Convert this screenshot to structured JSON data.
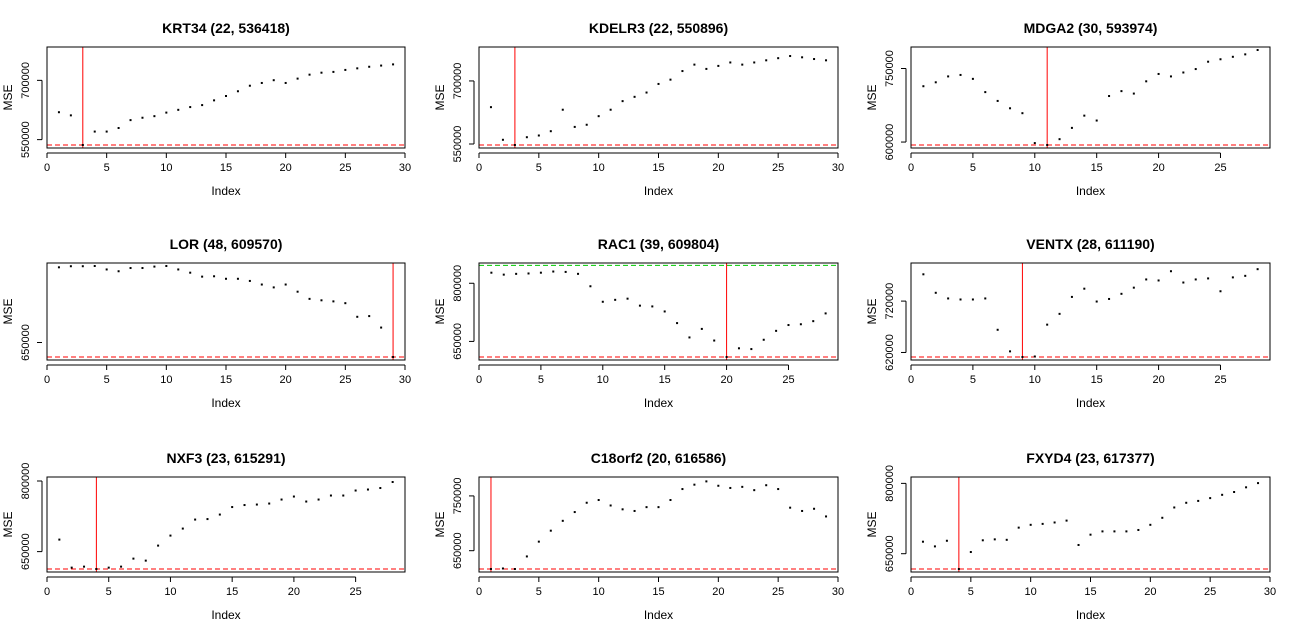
{
  "chart_data": [
    {
      "type": "scatter",
      "title": "KRT34 (22, 536418)",
      "xlabel": "Index",
      "ylabel": "MSE",
      "xlim": [
        0,
        30
      ],
      "ylim": [
        536418,
        792000
      ],
      "xticks": [
        0,
        5,
        10,
        15,
        20,
        25,
        30
      ],
      "yticks": [
        550000,
        700000
      ],
      "yticklabels": [
        "550000",
        "700000"
      ],
      "x": [
        1,
        2,
        3,
        4,
        5,
        6,
        7,
        8,
        9,
        10,
        11,
        12,
        13,
        14,
        15,
        16,
        17,
        18,
        19,
        20,
        21,
        22,
        23,
        24,
        25,
        26,
        27,
        28,
        29
      ],
      "y": [
        627000,
        619000,
        536418,
        578000,
        578000,
        587000,
        607000,
        613000,
        617000,
        626000,
        633000,
        640000,
        645000,
        657000,
        668000,
        680000,
        694000,
        701000,
        708000,
        701000,
        712000,
        722000,
        727000,
        729000,
        734000,
        738000,
        742000,
        745000,
        748000
      ],
      "reference_lines": [
        {
          "orientation": "vertical",
          "value": 3,
          "color": "#ff0000",
          "style": "solid"
        },
        {
          "orientation": "horizontal",
          "value": 536418,
          "color": "#ff0000",
          "style": "dashed"
        }
      ]
    },
    {
      "type": "scatter",
      "title": "KDELR3 (22, 550896)",
      "xlabel": "Index",
      "ylabel": "MSE",
      "xlim": [
        0,
        30
      ],
      "ylim": [
        550896,
        786000
      ],
      "xticks": [
        0,
        5,
        10,
        15,
        20,
        25,
        30
      ],
      "yticks": [
        550000,
        700000
      ],
      "yticklabels": [
        "550000",
        "700000"
      ],
      "x": [
        1,
        2,
        3,
        4,
        5,
        6,
        7,
        8,
        9,
        10,
        11,
        12,
        13,
        14,
        15,
        16,
        17,
        18,
        19,
        20,
        21,
        22,
        23,
        24,
        25,
        26,
        27,
        28,
        29
      ],
      "y": [
        646000,
        570000,
        550896,
        576000,
        580000,
        590000,
        640000,
        600000,
        605000,
        625000,
        640000,
        660000,
        670000,
        680000,
        700000,
        710000,
        730000,
        745000,
        735000,
        742000,
        750000,
        745000,
        750000,
        755000,
        760000,
        765000,
        762000,
        758000,
        755000
      ],
      "reference_lines": [
        {
          "orientation": "vertical",
          "value": 3,
          "color": "#ff0000",
          "style": "solid"
        },
        {
          "orientation": "horizontal",
          "value": 550896,
          "color": "#ff0000",
          "style": "dashed"
        }
      ]
    },
    {
      "type": "scatter",
      "title": "MDGA2 (30, 593974)",
      "xlabel": "Index",
      "ylabel": "MSE",
      "xlim": [
        0,
        29
      ],
      "ylim": [
        593974,
        800000
      ],
      "xticks": [
        0,
        5,
        10,
        15,
        20,
        25
      ],
      "yticks": [
        600000,
        750000
      ],
      "yticklabels": [
        "600000",
        "750000"
      ],
      "x": [
        1,
        2,
        3,
        4,
        5,
        6,
        7,
        8,
        9,
        10,
        11,
        12,
        13,
        14,
        15,
        16,
        17,
        18,
        19,
        20,
        21,
        22,
        23,
        24,
        25,
        26,
        27,
        28
      ],
      "y": [
        720000,
        728000,
        740000,
        743000,
        735000,
        708000,
        690000,
        675000,
        665000,
        604000,
        593974,
        612000,
        635000,
        660000,
        650000,
        700000,
        710000,
        705000,
        730000,
        745000,
        740000,
        748000,
        755000,
        770000,
        775000,
        780000,
        785000,
        795000
      ],
      "reference_lines": [
        {
          "orientation": "vertical",
          "value": 11,
          "color": "#ff0000",
          "style": "solid"
        },
        {
          "orientation": "horizontal",
          "value": 593974,
          "color": "#ff0000",
          "style": "dashed"
        }
      ]
    },
    {
      "type": "scatter",
      "title": "LOR (48, 609570)",
      "xlabel": "Index",
      "ylabel": "MSE",
      "xlim": [
        0,
        30
      ],
      "ylim": [
        609570,
        880000
      ],
      "xticks": [
        0,
        5,
        10,
        15,
        20,
        25,
        30
      ],
      "yticks": [
        650000
      ],
      "yticklabels": [
        "650000"
      ],
      "x": [
        1,
        2,
        3,
        4,
        5,
        6,
        7,
        8,
        9,
        10,
        11,
        12,
        13,
        14,
        15,
        16,
        17,
        18,
        19,
        20,
        21,
        22,
        23,
        24,
        25,
        26,
        27,
        28,
        29
      ],
      "y": [
        868000,
        871000,
        871000,
        872000,
        862000,
        857000,
        866000,
        866000,
        870000,
        872000,
        862000,
        853000,
        842000,
        843000,
        836000,
        836000,
        830000,
        820000,
        812000,
        820000,
        800000,
        780000,
        776000,
        773000,
        768000,
        730000,
        732000,
        700000,
        609570
      ],
      "reference_lines": [
        {
          "orientation": "vertical",
          "value": 29,
          "color": "#ff0000",
          "style": "solid"
        },
        {
          "orientation": "horizontal",
          "value": 609570,
          "color": "#ff0000",
          "style": "dashed"
        }
      ]
    },
    {
      "type": "scatter",
      "title": "RAC1 (39, 609804)",
      "xlabel": "Index",
      "ylabel": "MSE",
      "xlim": [
        0,
        29
      ],
      "ylim": [
        609804,
        860000
      ],
      "xticks": [
        0,
        5,
        10,
        15,
        20,
        25
      ],
      "yticks": [
        650000,
        800000
      ],
      "yticklabels": [
        "650000",
        "800000"
      ],
      "x": [
        1,
        2,
        3,
        4,
        5,
        6,
        7,
        8,
        9,
        10,
        11,
        12,
        13,
        14,
        15,
        16,
        17,
        18,
        19,
        20,
        21,
        22,
        23,
        24,
        25,
        26,
        27,
        28
      ],
      "y": [
        835000,
        830000,
        832000,
        833000,
        835000,
        838000,
        837000,
        832000,
        800000,
        760000,
        765000,
        768000,
        750000,
        748000,
        735000,
        705000,
        668000,
        690000,
        660000,
        609804,
        640000,
        638000,
        662000,
        685000,
        700000,
        702000,
        710000,
        730000
      ],
      "reference_lines": [
        {
          "orientation": "vertical",
          "value": 20,
          "color": "#ff0000",
          "style": "solid"
        },
        {
          "orientation": "horizontal",
          "value": 609804,
          "color": "#ff0000",
          "style": "dashed"
        },
        {
          "orientation": "horizontal",
          "value": 846000,
          "color": "#00cc00",
          "style": "dashed"
        }
      ]
    },
    {
      "type": "scatter",
      "title": "VENTX (28, 611190)",
      "xlabel": "Index",
      "ylabel": "MSE",
      "xlim": [
        0,
        29
      ],
      "ylim": [
        611190,
        800000
      ],
      "xticks": [
        0,
        5,
        10,
        15,
        20,
        25
      ],
      "yticks": [
        620000,
        720000
      ],
      "yticklabels": [
        "620000",
        "720000"
      ],
      "x": [
        1,
        2,
        3,
        4,
        5,
        6,
        7,
        8,
        9,
        10,
        11,
        12,
        13,
        14,
        15,
        16,
        17,
        18,
        19,
        20,
        21,
        22,
        23,
        24,
        25,
        26,
        27,
        28
      ],
      "y": [
        778000,
        742000,
        731000,
        729000,
        729000,
        731000,
        670000,
        628000,
        611190,
        618000,
        680000,
        701000,
        734000,
        750000,
        725000,
        730000,
        740000,
        752000,
        768000,
        766000,
        784000,
        762000,
        768000,
        770000,
        745000,
        772000,
        775000,
        788000
      ],
      "reference_lines": [
        {
          "orientation": "vertical",
          "value": 9,
          "color": "#ff0000",
          "style": "solid"
        },
        {
          "orientation": "horizontal",
          "value": 611190,
          "color": "#ff0000",
          "style": "dashed"
        }
      ]
    },
    {
      "type": "scatter",
      "title": "NXF3 (23, 615291)",
      "xlabel": "Index",
      "ylabel": "MSE",
      "xlim": [
        0,
        29
      ],
      "ylim": [
        615291,
        805000
      ],
      "xticks": [
        0,
        5,
        10,
        15,
        20,
        25
      ],
      "yticks": [
        650000,
        800000
      ],
      "yticklabels": [
        "650000",
        "800000"
      ],
      "x": [
        1,
        2,
        3,
        4,
        5,
        6,
        7,
        8,
        9,
        10,
        11,
        12,
        13,
        14,
        15,
        16,
        17,
        18,
        19,
        20,
        21,
        22,
        23,
        24,
        25,
        26,
        27,
        28
      ],
      "y": [
        680000,
        624000,
        626000,
        615291,
        624000,
        626000,
        642000,
        638000,
        668000,
        688000,
        702000,
        720000,
        721000,
        730000,
        745000,
        749000,
        750000,
        752000,
        760000,
        766000,
        756000,
        760000,
        768000,
        768000,
        778000,
        780000,
        783000,
        795000
      ],
      "reference_lines": [
        {
          "orientation": "vertical",
          "value": 4,
          "color": "#ff0000",
          "style": "solid"
        },
        {
          "orientation": "horizontal",
          "value": 615291,
          "color": "#ff0000",
          "style": "dashed"
        }
      ]
    },
    {
      "type": "scatter",
      "title": "C18orf2 (20, 616586)",
      "xlabel": "Index",
      "ylabel": "MSE",
      "xlim": [
        0,
        30
      ],
      "ylim": [
        616586,
        790000
      ],
      "xticks": [
        0,
        5,
        10,
        15,
        20,
        25,
        30
      ],
      "yticks": [
        650000,
        750000
      ],
      "yticklabels": [
        "650000",
        "750000"
      ],
      "x": [
        1,
        2,
        3,
        4,
        5,
        6,
        7,
        8,
        9,
        10,
        11,
        12,
        13,
        14,
        15,
        16,
        17,
        18,
        19,
        20,
        21,
        22,
        23,
        24,
        25,
        26,
        27,
        28,
        29
      ],
      "y": [
        616586,
        623000,
        618000,
        645000,
        672000,
        692000,
        710000,
        726000,
        743000,
        748000,
        738000,
        731000,
        728000,
        735000,
        735000,
        748000,
        768000,
        776000,
        782000,
        774000,
        770000,
        772000,
        766000,
        775000,
        768000,
        734000,
        728000,
        732000,
        718000
      ],
      "reference_lines": [
        {
          "orientation": "vertical",
          "value": 1,
          "color": "#ff0000",
          "style": "solid"
        },
        {
          "orientation": "horizontal",
          "value": 616586,
          "color": "#ff0000",
          "style": "dashed"
        }
      ]
    },
    {
      "type": "scatter",
      "title": "FXYD4 (23, 617377)",
      "xlabel": "Index",
      "ylabel": "MSE",
      "xlim": [
        0,
        30
      ],
      "ylim": [
        617377,
        820000
      ],
      "xticks": [
        0,
        5,
        10,
        15,
        20,
        25,
        30
      ],
      "yticks": [
        650000,
        800000
      ],
      "yticklabels": [
        "650000",
        "800000"
      ],
      "x": [
        1,
        2,
        3,
        4,
        5,
        6,
        7,
        8,
        9,
        10,
        11,
        12,
        13,
        14,
        15,
        16,
        17,
        18,
        19,
        20,
        21,
        22,
        23,
        24,
        25,
        26,
        27,
        28,
        29
      ],
      "y": [
        682000,
        672000,
        684000,
        617377,
        660000,
        685000,
        687000,
        686000,
        712000,
        718000,
        720000,
        723000,
        727000,
        675000,
        697000,
        704000,
        704000,
        704000,
        707000,
        718000,
        733000,
        755000,
        765000,
        769000,
        775000,
        782000,
        788000,
        798000,
        807000
      ],
      "reference_lines": [
        {
          "orientation": "vertical",
          "value": 4,
          "color": "#ff0000",
          "style": "solid"
        },
        {
          "orientation": "horizontal",
          "value": 617377,
          "color": "#ff0000",
          "style": "dashed"
        }
      ]
    }
  ]
}
